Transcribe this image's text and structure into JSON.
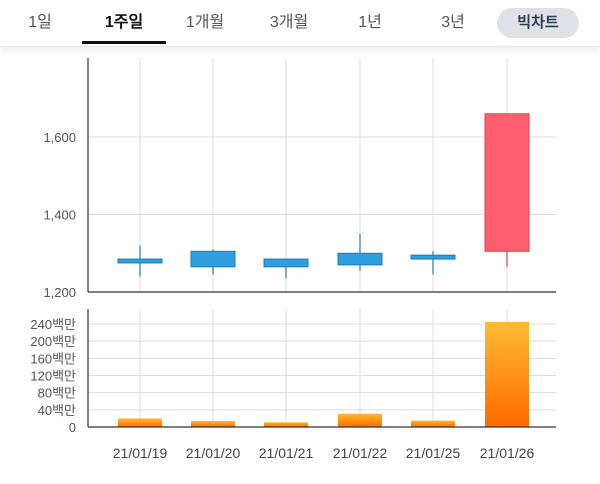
{
  "tabs": [
    {
      "label": "1일",
      "active": false
    },
    {
      "label": "1주일",
      "active": true
    },
    {
      "label": "1개월",
      "active": false
    },
    {
      "label": "3개월",
      "active": false
    },
    {
      "label": "1년",
      "active": false
    },
    {
      "label": "3년",
      "active": false
    }
  ],
  "bigchart_label": "빅차트",
  "colors": {
    "down": "#2f9fe0",
    "down_border": "#1a7bb8",
    "up": "#ff5f6d",
    "up_border": "#e0404f",
    "volume_top": "#ffbb33",
    "volume_bottom": "#ff6a00"
  },
  "chart_data": [
    {
      "type": "candlestick",
      "categories": [
        "21/01/19",
        "21/01/20",
        "21/01/21",
        "21/01/22",
        "21/01/25",
        "21/01/26"
      ],
      "series": [
        {
          "open": 1285,
          "close": 1275,
          "high": 1320,
          "low": 1240
        },
        {
          "open": 1305,
          "close": 1265,
          "high": 1310,
          "low": 1245
        },
        {
          "open": 1285,
          "close": 1265,
          "high": 1285,
          "low": 1235
        },
        {
          "open": 1300,
          "close": 1270,
          "high": 1350,
          "low": 1255
        },
        {
          "open": 1295,
          "close": 1285,
          "high": 1305,
          "low": 1245
        },
        {
          "open": 1305,
          "close": 1660,
          "high": 1660,
          "low": 1265
        }
      ],
      "ylim": [
        1200,
        1800
      ],
      "yticks": [
        {
          "value": 1200,
          "label": "1,200"
        },
        {
          "value": 1400,
          "label": "1,400"
        },
        {
          "value": 1600,
          "label": "1,600"
        }
      ],
      "grid": true
    },
    {
      "type": "bar",
      "categories": [
        "21/01/19",
        "21/01/20",
        "21/01/21",
        "21/01/22",
        "21/01/25",
        "21/01/26"
      ],
      "values": [
        20000000,
        14000000,
        11000000,
        31000000,
        15000000,
        245000000
      ],
      "ylim": [
        0,
        270000000
      ],
      "yticks": [
        {
          "value": 0,
          "label": "0"
        },
        {
          "value": 40000000,
          "label": "40백만"
        },
        {
          "value": 80000000,
          "label": "80백만"
        },
        {
          "value": 120000000,
          "label": "120백만"
        },
        {
          "value": 160000000,
          "label": "160백만"
        },
        {
          "value": 200000000,
          "label": "200백만"
        },
        {
          "value": 240000000,
          "label": "240백만"
        }
      ],
      "grid": true
    }
  ]
}
